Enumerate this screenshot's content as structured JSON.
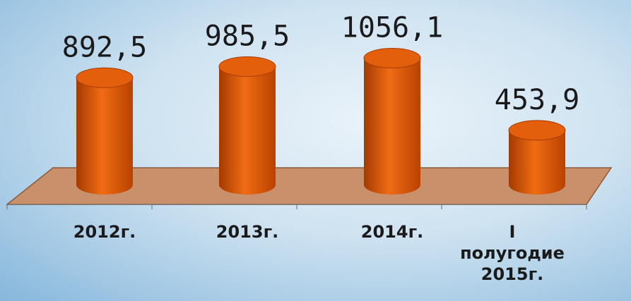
{
  "chart_data": {
    "type": "bar3d",
    "categories": [
      "2012г.",
      "2013г.",
      "2014г.",
      "I полугодие 2015г."
    ],
    "values": [
      892.5,
      985.5,
      1056.1,
      453.9
    ],
    "value_labels": [
      "892,5",
      "985,5",
      "1056,1",
      "453,9"
    ],
    "color": "#e35f0c"
  }
}
